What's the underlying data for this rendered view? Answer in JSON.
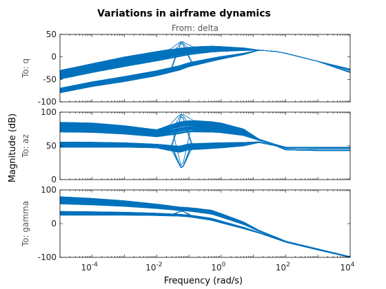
{
  "chart_data": {
    "type": "line",
    "title": "Variations in airframe dynamics",
    "subtitle": "From: delta",
    "xlabel": "Frequency  (rad/s)",
    "ylabel": "Magnitude (dB)",
    "xscale": "log",
    "xlim": [
      1e-05,
      10000
    ],
    "x_ticks": [
      {
        "base": "10",
        "exp": "-4",
        "value": 0.0001
      },
      {
        "base": "10",
        "exp": "-2",
        "value": 0.01
      },
      {
        "base": "10",
        "exp": "0",
        "value": 1
      },
      {
        "base": "10",
        "exp": "2",
        "value": 100
      },
      {
        "base": "10",
        "exp": "4",
        "value": 10000
      }
    ],
    "line_color": "#0072BD",
    "grid": false,
    "panels": [
      {
        "name": "To: q",
        "ylim": [
          -100,
          50
        ],
        "yticks": [
          -100,
          -50,
          0,
          50
        ],
        "series_count": 70,
        "x": [
          1e-05,
          0.0001,
          0.001,
          0.01,
          0.05,
          0.1,
          0.5,
          1,
          5,
          15,
          50,
          100,
          1000,
          10000
        ],
        "envelope_low": [
          -80,
          -66,
          -55,
          -42,
          -30,
          -22,
          -10,
          -5,
          5,
          15,
          12,
          8,
          -10,
          -35
        ],
        "envelope_high": [
          -30,
          -15,
          0,
          12,
          20,
          22,
          24,
          23,
          20,
          15,
          12,
          8,
          -10,
          -27
        ],
        "peak": {
          "x": 0.06,
          "y": 35
        }
      },
      {
        "name": "To: az",
        "ylim": [
          0,
          100
        ],
        "yticks": [
          0,
          50,
          100
        ],
        "series_count": 70,
        "x": [
          1e-05,
          0.0001,
          0.001,
          0.01,
          0.05,
          0.1,
          0.5,
          1,
          5,
          15,
          50,
          100,
          1000,
          10000
        ],
        "envelope_low": [
          48,
          48,
          48,
          47,
          40,
          44,
          46,
          47,
          50,
          55,
          50,
          44,
          43,
          43
        ],
        "envelope_high": [
          85,
          84,
          80,
          74,
          86,
          88,
          86,
          84,
          75,
          60,
          52,
          48,
          48,
          48
        ],
        "peak": {
          "x": 0.06,
          "y": 98
        },
        "notch": {
          "x": 0.06,
          "y": 15
        }
      },
      {
        "name": "To: gamma",
        "ylim": [
          -100,
          100
        ],
        "yticks": [
          -100,
          0,
          100
        ],
        "series_count": 70,
        "x": [
          1e-05,
          0.0001,
          0.001,
          0.01,
          0.05,
          0.1,
          0.5,
          1,
          5,
          15,
          50,
          100,
          1000,
          10000
        ],
        "envelope_low": [
          25,
          25,
          25,
          24,
          22,
          20,
          10,
          2,
          -15,
          -28,
          -45,
          -55,
          -78,
          -100
        ],
        "envelope_high": [
          80,
          75,
          68,
          58,
          50,
          48,
          40,
          30,
          5,
          -20,
          -40,
          -52,
          -75,
          -98
        ],
        "peak": {
          "x": 0.06,
          "y": 38
        }
      }
    ]
  }
}
